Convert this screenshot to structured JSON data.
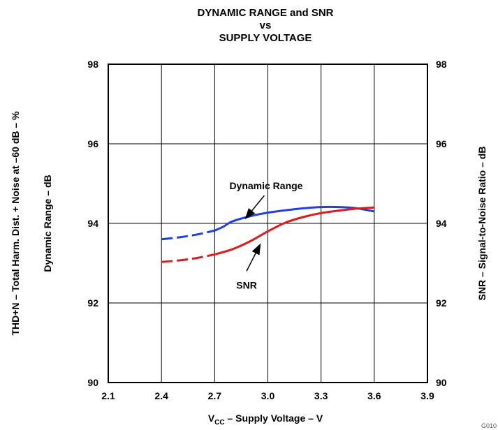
{
  "chart_data": {
    "type": "line",
    "title_lines": [
      "DYNAMIC RANGE and SNR",
      "vs",
      "SUPPLY VOLTAGE"
    ],
    "xlabel_main": "V",
    "xlabel_sub": "CC",
    "xlabel_rest": " – Supply Voltage – V",
    "ylabel_left_outer": "THD+N – Total Harm. Dist. + Noise at –60 dB – %",
    "ylabel_left_inner": "Dynamic Range – dB",
    "ylabel_right": "SNR – Signal-to-Noise Ratio – dB",
    "xlim": [
      2.1,
      3.9
    ],
    "ylim": [
      90,
      98
    ],
    "x_ticks": [
      2.1,
      2.4,
      2.7,
      3.0,
      3.3,
      3.6,
      3.9
    ],
    "x_tick_labels": [
      "2.1",
      "2.4",
      "2.7",
      "3.0",
      "3.3",
      "3.6",
      "3.9"
    ],
    "y_ticks": [
      90,
      92,
      94,
      96,
      98
    ],
    "y_tick_labels": [
      "90",
      "92",
      "94",
      "96",
      "98"
    ],
    "grid": true,
    "series": [
      {
        "name": "Dynamic Range",
        "color": "#1f3fe0",
        "dashed_until_x": 2.7,
        "x": [
          2.4,
          2.5,
          2.6,
          2.7,
          2.75,
          2.8,
          2.9,
          3.0,
          3.1,
          3.2,
          3.3,
          3.4,
          3.5,
          3.6
        ],
        "y": [
          93.6,
          93.65,
          93.72,
          93.82,
          93.92,
          94.05,
          94.18,
          94.27,
          94.33,
          94.38,
          94.41,
          94.41,
          94.38,
          94.3
        ]
      },
      {
        "name": "SNR",
        "color": "#e01a1a",
        "dashed_until_x": 2.7,
        "x": [
          2.4,
          2.5,
          2.6,
          2.7,
          2.8,
          2.9,
          3.0,
          3.1,
          3.2,
          3.3,
          3.4,
          3.5,
          3.6
        ],
        "y": [
          93.03,
          93.07,
          93.13,
          93.22,
          93.35,
          93.55,
          93.8,
          94.02,
          94.16,
          94.26,
          94.32,
          94.37,
          94.4
        ]
      }
    ],
    "annotations": [
      {
        "text": "Dynamic Range",
        "x": 2.99,
        "y": 94.95,
        "arrow_from": [
          2.98,
          94.7
        ],
        "arrow_to": [
          2.87,
          94.1
        ]
      },
      {
        "text": "SNR",
        "x": 2.88,
        "y": 92.45,
        "arrow_from": [
          2.88,
          92.8
        ],
        "arrow_to": [
          2.96,
          93.5
        ]
      }
    ],
    "figure_code": "G010"
  }
}
